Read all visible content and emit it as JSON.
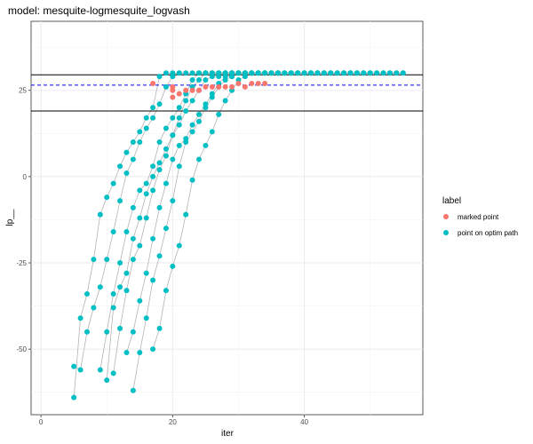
{
  "chart_data": {
    "type": "scatter",
    "title": "model: mesquite-logmesquite_logvash",
    "xlabel": "iter",
    "ylabel": "lp__",
    "xlim": [
      -1.5,
      58
    ],
    "ylim": [
      -69,
      45
    ],
    "x_ticks": [
      0,
      20,
      40
    ],
    "y_ticks": [
      -50,
      -25,
      0,
      25
    ],
    "grid": true,
    "legend": {
      "title": "label",
      "position": "right",
      "entries": [
        {
          "label": "marked point",
          "color": "#F8766D"
        },
        {
          "label": "point on optim path",
          "color": "#00BFC4"
        }
      ]
    },
    "reference_lines": [
      {
        "y": 29.5,
        "style": "solid",
        "color": "#000000"
      },
      {
        "y": 26.5,
        "style": "dashed",
        "color": "#0000FF"
      },
      {
        "y": 19,
        "style": "solid",
        "color": "#000000"
      }
    ],
    "series": [
      {
        "name": "point on optim path",
        "color": "#00BFC4",
        "paths": [
          [
            [
              5,
              -64
            ],
            [
              6,
              -41
            ],
            [
              7,
              -34
            ],
            [
              8,
              -24
            ],
            [
              9,
              -11
            ],
            [
              10,
              -6
            ],
            [
              11,
              -2
            ],
            [
              12,
              3
            ],
            [
              13,
              7
            ],
            [
              14,
              10
            ],
            [
              15,
              13
            ],
            [
              16,
              17
            ],
            [
              17,
              20
            ],
            [
              18,
              29
            ],
            [
              19,
              30
            ],
            [
              20,
              30
            ],
            [
              21,
              30
            ]
          ],
          [
            [
              5,
              -55
            ],
            [
              6,
              -56
            ],
            [
              7,
              -45
            ],
            [
              8,
              -38
            ],
            [
              9,
              -32
            ],
            [
              10,
              -24
            ],
            [
              11,
              -16
            ],
            [
              12,
              -7
            ],
            [
              13,
              1
            ],
            [
              14,
              5
            ],
            [
              15,
              10
            ],
            [
              16,
              14
            ],
            [
              17,
              17
            ],
            [
              18,
              21
            ],
            [
              19,
              26
            ],
            [
              20,
              29
            ],
            [
              21,
              30
            ],
            [
              22,
              30
            ],
            [
              23,
              30
            ],
            [
              24,
              30
            ],
            [
              25,
              30
            ],
            [
              26,
              30
            ],
            [
              27,
              30
            ],
            [
              28,
              30
            ],
            [
              29,
              30
            ],
            [
              30,
              30
            ]
          ],
          [
            [
              9,
              -56
            ],
            [
              10,
              -45
            ],
            [
              11,
              -34
            ],
            [
              12,
              -25
            ],
            [
              13,
              -16
            ],
            [
              14,
              -9
            ],
            [
              15,
              -4
            ],
            [
              16,
              -2
            ],
            [
              17,
              3
            ],
            [
              18,
              10
            ],
            [
              19,
              14
            ],
            [
              20,
              17
            ],
            [
              21,
              20
            ],
            [
              22,
              24
            ],
            [
              23,
              28
            ],
            [
              24,
              30
            ],
            [
              25,
              30
            ],
            [
              26,
              30
            ],
            [
              27,
              30
            ],
            [
              28,
              30
            ],
            [
              29,
              30
            ],
            [
              30,
              30
            ],
            [
              31,
              30
            ],
            [
              32,
              30
            ],
            [
              33,
              30
            ],
            [
              34,
              30
            ],
            [
              35,
              30
            ],
            [
              36,
              30
            ],
            [
              37,
              30
            ],
            [
              38,
              30
            ],
            [
              39,
              30
            ],
            [
              40,
              30
            ],
            [
              41,
              30
            ],
            [
              42,
              30
            ],
            [
              43,
              30
            ],
            [
              44,
              30
            ],
            [
              45,
              30
            ],
            [
              46,
              30
            ],
            [
              47,
              30
            ],
            [
              48,
              30
            ],
            [
              49,
              30
            ],
            [
              50,
              30
            ],
            [
              51,
              30
            ],
            [
              52,
              30
            ],
            [
              53,
              30
            ],
            [
              54,
              30
            ],
            [
              55,
              30
            ]
          ],
          [
            [
              10,
              -59
            ],
            [
              11,
              -38
            ],
            [
              12,
              -32
            ],
            [
              13,
              -28
            ],
            [
              14,
              -18
            ],
            [
              15,
              -12
            ],
            [
              16,
              -5
            ],
            [
              17,
              0
            ],
            [
              18,
              4
            ],
            [
              19,
              8
            ],
            [
              20,
              12
            ],
            [
              21,
              17
            ],
            [
              22,
              22
            ],
            [
              23,
              26
            ],
            [
              24,
              28
            ],
            [
              25,
              30
            ],
            [
              26,
              30
            ],
            [
              27,
              30
            ],
            [
              28,
              30
            ],
            [
              29,
              30
            ],
            [
              30,
              30
            ],
            [
              31,
              30
            ],
            [
              32,
              30
            ],
            [
              33,
              30
            ],
            [
              34,
              30
            ],
            [
              35,
              30
            ],
            [
              36,
              30
            ]
          ],
          [
            [
              11,
              -57
            ],
            [
              12,
              -44
            ],
            [
              13,
              -33
            ],
            [
              14,
              -24
            ],
            [
              15,
              -20
            ],
            [
              16,
              -12
            ],
            [
              17,
              -4
            ],
            [
              18,
              2
            ],
            [
              19,
              6
            ],
            [
              20,
              12
            ],
            [
              21,
              15
            ],
            [
              22,
              19
            ],
            [
              23,
              22
            ],
            [
              24,
              25
            ],
            [
              25,
              28
            ],
            [
              26,
              29
            ],
            [
              27,
              29
            ],
            [
              28,
              30
            ],
            [
              29,
              30
            ],
            [
              30,
              30
            ]
          ],
          [
            [
              13,
              -51
            ],
            [
              14,
              -45
            ],
            [
              15,
              -36
            ],
            [
              16,
              -28
            ],
            [
              17,
              -18
            ],
            [
              18,
              -9
            ],
            [
              19,
              -2
            ],
            [
              20,
              5
            ],
            [
              21,
              9
            ],
            [
              22,
              11
            ],
            [
              23,
              15
            ],
            [
              24,
              18
            ],
            [
              25,
              21
            ],
            [
              26,
              24
            ],
            [
              27,
              27
            ],
            [
              28,
              29
            ],
            [
              29,
              29
            ],
            [
              30,
              30
            ],
            [
              31,
              30
            ],
            [
              32,
              30
            ],
            [
              33,
              30
            ],
            [
              34,
              30
            ],
            [
              35,
              30
            ],
            [
              36,
              30
            ],
            [
              37,
              30
            ],
            [
              38,
              30
            ],
            [
              39,
              30
            ],
            [
              40,
              30
            ],
            [
              41,
              30
            ],
            [
              42,
              30
            ]
          ],
          [
            [
              14,
              -62
            ],
            [
              15,
              -51
            ],
            [
              16,
              -41
            ],
            [
              17,
              -30
            ],
            [
              18,
              -23
            ],
            [
              19,
              -15
            ],
            [
              20,
              -7
            ],
            [
              21,
              3
            ],
            [
              22,
              10
            ],
            [
              23,
              13
            ],
            [
              24,
              16
            ],
            [
              25,
              20
            ],
            [
              26,
              23
            ],
            [
              27,
              26
            ],
            [
              28,
              28
            ],
            [
              29,
              29
            ],
            [
              30,
              30
            ],
            [
              31,
              30
            ],
            [
              32,
              30
            ],
            [
              33,
              30
            ],
            [
              34,
              30
            ],
            [
              35,
              30
            ],
            [
              36,
              30
            ],
            [
              37,
              30
            ],
            [
              38,
              30
            ],
            [
              39,
              30
            ],
            [
              40,
              30
            ],
            [
              41,
              30
            ],
            [
              42,
              30
            ],
            [
              43,
              30
            ],
            [
              44,
              30
            ],
            [
              45,
              30
            ],
            [
              46,
              30
            ],
            [
              47,
              30
            ],
            [
              48,
              30
            ],
            [
              49,
              30
            ],
            [
              50,
              30
            ]
          ],
          [
            [
              17,
              -50
            ],
            [
              18,
              -44
            ],
            [
              19,
              -33
            ],
            [
              20,
              -26
            ],
            [
              21,
              -20
            ],
            [
              22,
              -11
            ],
            [
              23,
              -1
            ],
            [
              24,
              5
            ],
            [
              25,
              9
            ],
            [
              26,
              13
            ],
            [
              27,
              18
            ],
            [
              28,
              22
            ],
            [
              29,
              25
            ],
            [
              30,
              28
            ],
            [
              31,
              29
            ],
            [
              32,
              30
            ],
            [
              33,
              30
            ],
            [
              34,
              30
            ],
            [
              35,
              30
            ],
            [
              36,
              30
            ],
            [
              37,
              30
            ],
            [
              38,
              30
            ],
            [
              39,
              30
            ],
            [
              40,
              30
            ],
            [
              41,
              30
            ],
            [
              42,
              30
            ],
            [
              43,
              30
            ],
            [
              44,
              30
            ],
            [
              45,
              30
            ],
            [
              46,
              30
            ],
            [
              47,
              30
            ],
            [
              48,
              30
            ],
            [
              49,
              30
            ],
            [
              50,
              30
            ],
            [
              51,
              30
            ],
            [
              52,
              30
            ],
            [
              53,
              30
            ],
            [
              54,
              30
            ],
            [
              55,
              30
            ]
          ]
        ]
      },
      {
        "name": "marked point",
        "color": "#F8766D",
        "points": [
          [
            17,
            27
          ],
          [
            20,
            23
          ],
          [
            20,
            25
          ],
          [
            20,
            26
          ],
          [
            21,
            24
          ],
          [
            22,
            25
          ],
          [
            23,
            25
          ],
          [
            24,
            25
          ],
          [
            25,
            26
          ],
          [
            26,
            26
          ],
          [
            27,
            26
          ],
          [
            28,
            26
          ],
          [
            29,
            26
          ],
          [
            30,
            27
          ],
          [
            31,
            26
          ],
          [
            32,
            27
          ],
          [
            33,
            27
          ],
          [
            34,
            27
          ]
        ]
      }
    ]
  }
}
